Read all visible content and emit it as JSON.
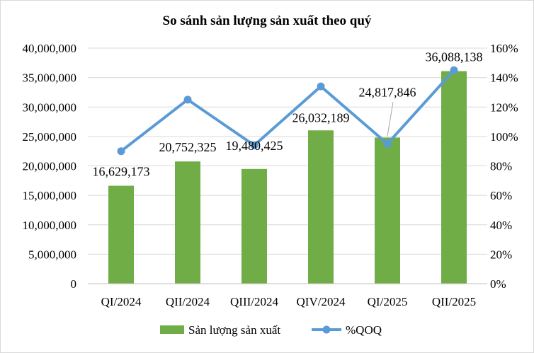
{
  "chart_data": {
    "type": "bar",
    "title": "So sánh sản lượng sản xuất theo quý",
    "categories": [
      "QI/2024",
      "QII/2024",
      "QIII/2024",
      "QIV/2024",
      "QI/2025",
      "QII/2025"
    ],
    "series": [
      {
        "name": "Sản lượng sản xuất",
        "type": "bar",
        "axis": "left",
        "color": "#70ad47",
        "values": [
          16629173,
          20752325,
          19480425,
          26032189,
          24817846,
          36088138
        ],
        "labels": [
          "16,629,173",
          "20,752,325",
          "19,480,425",
          "26,032,189",
          "24,817,846",
          "36,088,138"
        ]
      },
      {
        "name": "%QOQ",
        "type": "line",
        "axis": "right",
        "color": "#5b9bd5",
        "values": [
          90,
          125,
          94,
          134,
          95,
          145
        ]
      }
    ],
    "y_left": {
      "min": 0,
      "max": 40000000,
      "ticks": [
        0,
        5000000,
        10000000,
        15000000,
        20000000,
        25000000,
        30000000,
        35000000,
        40000000
      ],
      "tick_labels": [
        "0",
        "5,000,000",
        "10,000,000",
        "15,000,000",
        "20,000,000",
        "25,000,000",
        "30,000,000",
        "35,000,000",
        "40,000,000"
      ]
    },
    "y_right": {
      "min": 0,
      "max": 160,
      "ticks": [
        0,
        20,
        40,
        60,
        80,
        100,
        120,
        140,
        160
      ],
      "tick_labels": [
        "0%",
        "20%",
        "40%",
        "60%",
        "80%",
        "100%",
        "120%",
        "140%",
        "160%"
      ]
    },
    "grid": true,
    "legend": "bottom"
  }
}
